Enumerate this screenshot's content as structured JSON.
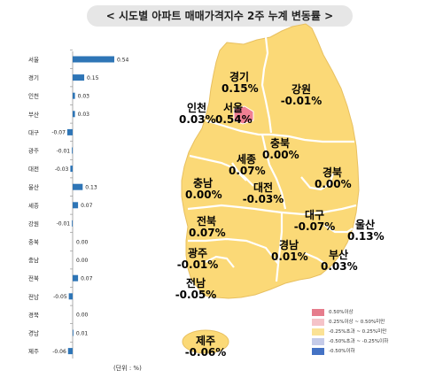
{
  "title": "< 시도별 아파트 매매가격지수 2주 누계 변동률 >",
  "unit_label": "(단위 : %)",
  "colors": {
    "bar": "#2e75b6",
    "map_fill": "#fbd977",
    "map_border": "#ffffff",
    "seoul_fill": "#f07f93",
    "legend": [
      "#e67c8c",
      "#f5c3c8",
      "#fbe295",
      "#c5cbe8",
      "#4472c4"
    ]
  },
  "chart_data": [
    {
      "type": "bar",
      "orientation": "horizontal",
      "categories": [
        "서울",
        "경기",
        "인천",
        "부산",
        "대구",
        "광주",
        "대전",
        "울산",
        "세종",
        "강원",
        "충북",
        "충남",
        "전북",
        "전남",
        "경북",
        "경남",
        "제주"
      ],
      "values": [
        0.54,
        0.15,
        0.03,
        0.03,
        -0.07,
        -0.01,
        -0.03,
        0.13,
        0.07,
        -0.01,
        0.0,
        0.0,
        0.07,
        -0.05,
        0.0,
        0.01,
        -0.06
      ],
      "value_labels": [
        "0.54",
        "0.15",
        "0.03",
        "0.03",
        "-0.07",
        "-0.01",
        "-0.03",
        "0.13",
        "0.07",
        "-0.01",
        "0.00",
        "0.00",
        "0.07",
        "-0.05",
        "0.00",
        "0.01",
        "-0.06"
      ]
    },
    {
      "type": "map",
      "regions": [
        {
          "name": "경기",
          "value": "0.15%"
        },
        {
          "name": "강원",
          "value": "-0.01%"
        },
        {
          "name": "인천",
          "value": "0.03%"
        },
        {
          "name": "서울",
          "value": "0.54%"
        },
        {
          "name": "충북",
          "value": "0.00%"
        },
        {
          "name": "세종",
          "value": "0.07%"
        },
        {
          "name": "경북",
          "value": "0.00%"
        },
        {
          "name": "충남",
          "value": "0.00%"
        },
        {
          "name": "대전",
          "value": "-0.03%"
        },
        {
          "name": "전북",
          "value": "0.07%"
        },
        {
          "name": "대구",
          "value": "-0.07%"
        },
        {
          "name": "울산",
          "value": "0.13%"
        },
        {
          "name": "광주",
          "value": "-0.01%"
        },
        {
          "name": "경남",
          "value": "0.01%"
        },
        {
          "name": "부산",
          "value": "0.03%"
        },
        {
          "name": "전남",
          "value": "-0.05%"
        },
        {
          "name": "제주",
          "value": "-0.06%"
        }
      ],
      "legend": [
        "0.50%이상",
        "0.25%이상 ~ 0.50%미만",
        "-0.25%초과 ~ 0.25%미만",
        "-0.50%초과 ~ -0.25%이하",
        "-0.50%이하"
      ]
    }
  ]
}
